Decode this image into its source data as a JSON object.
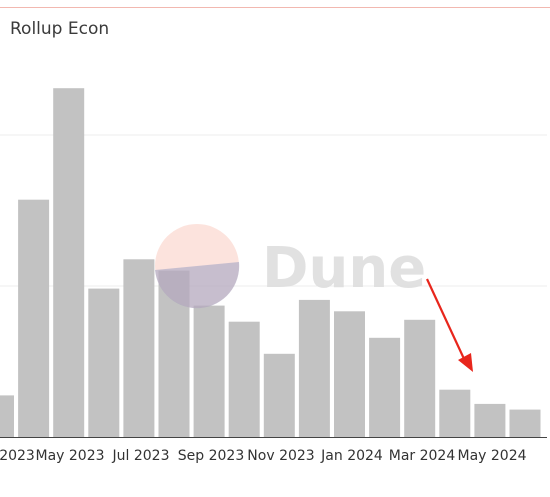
{
  "chart_data": {
    "type": "bar",
    "title": "Rollup Econ",
    "x_tick_labels": [
      "2023",
      "May 2023",
      "Jul 2023",
      "Sep 2023",
      "Nov 2023",
      "Jan 2024",
      "Mar 2024",
      "May 2024"
    ],
    "values": [
      44,
      251,
      369,
      157,
      188,
      176,
      139,
      122,
      88,
      145,
      133,
      105,
      124,
      50,
      35,
      29
    ],
    "ylim": [
      0,
      420
    ],
    "grid": true,
    "bar_color": "#c2c2c2",
    "annotation": {
      "type": "arrow",
      "color": "#e8261c",
      "target": "low bars around May 2024"
    },
    "watermark": "Dune"
  }
}
